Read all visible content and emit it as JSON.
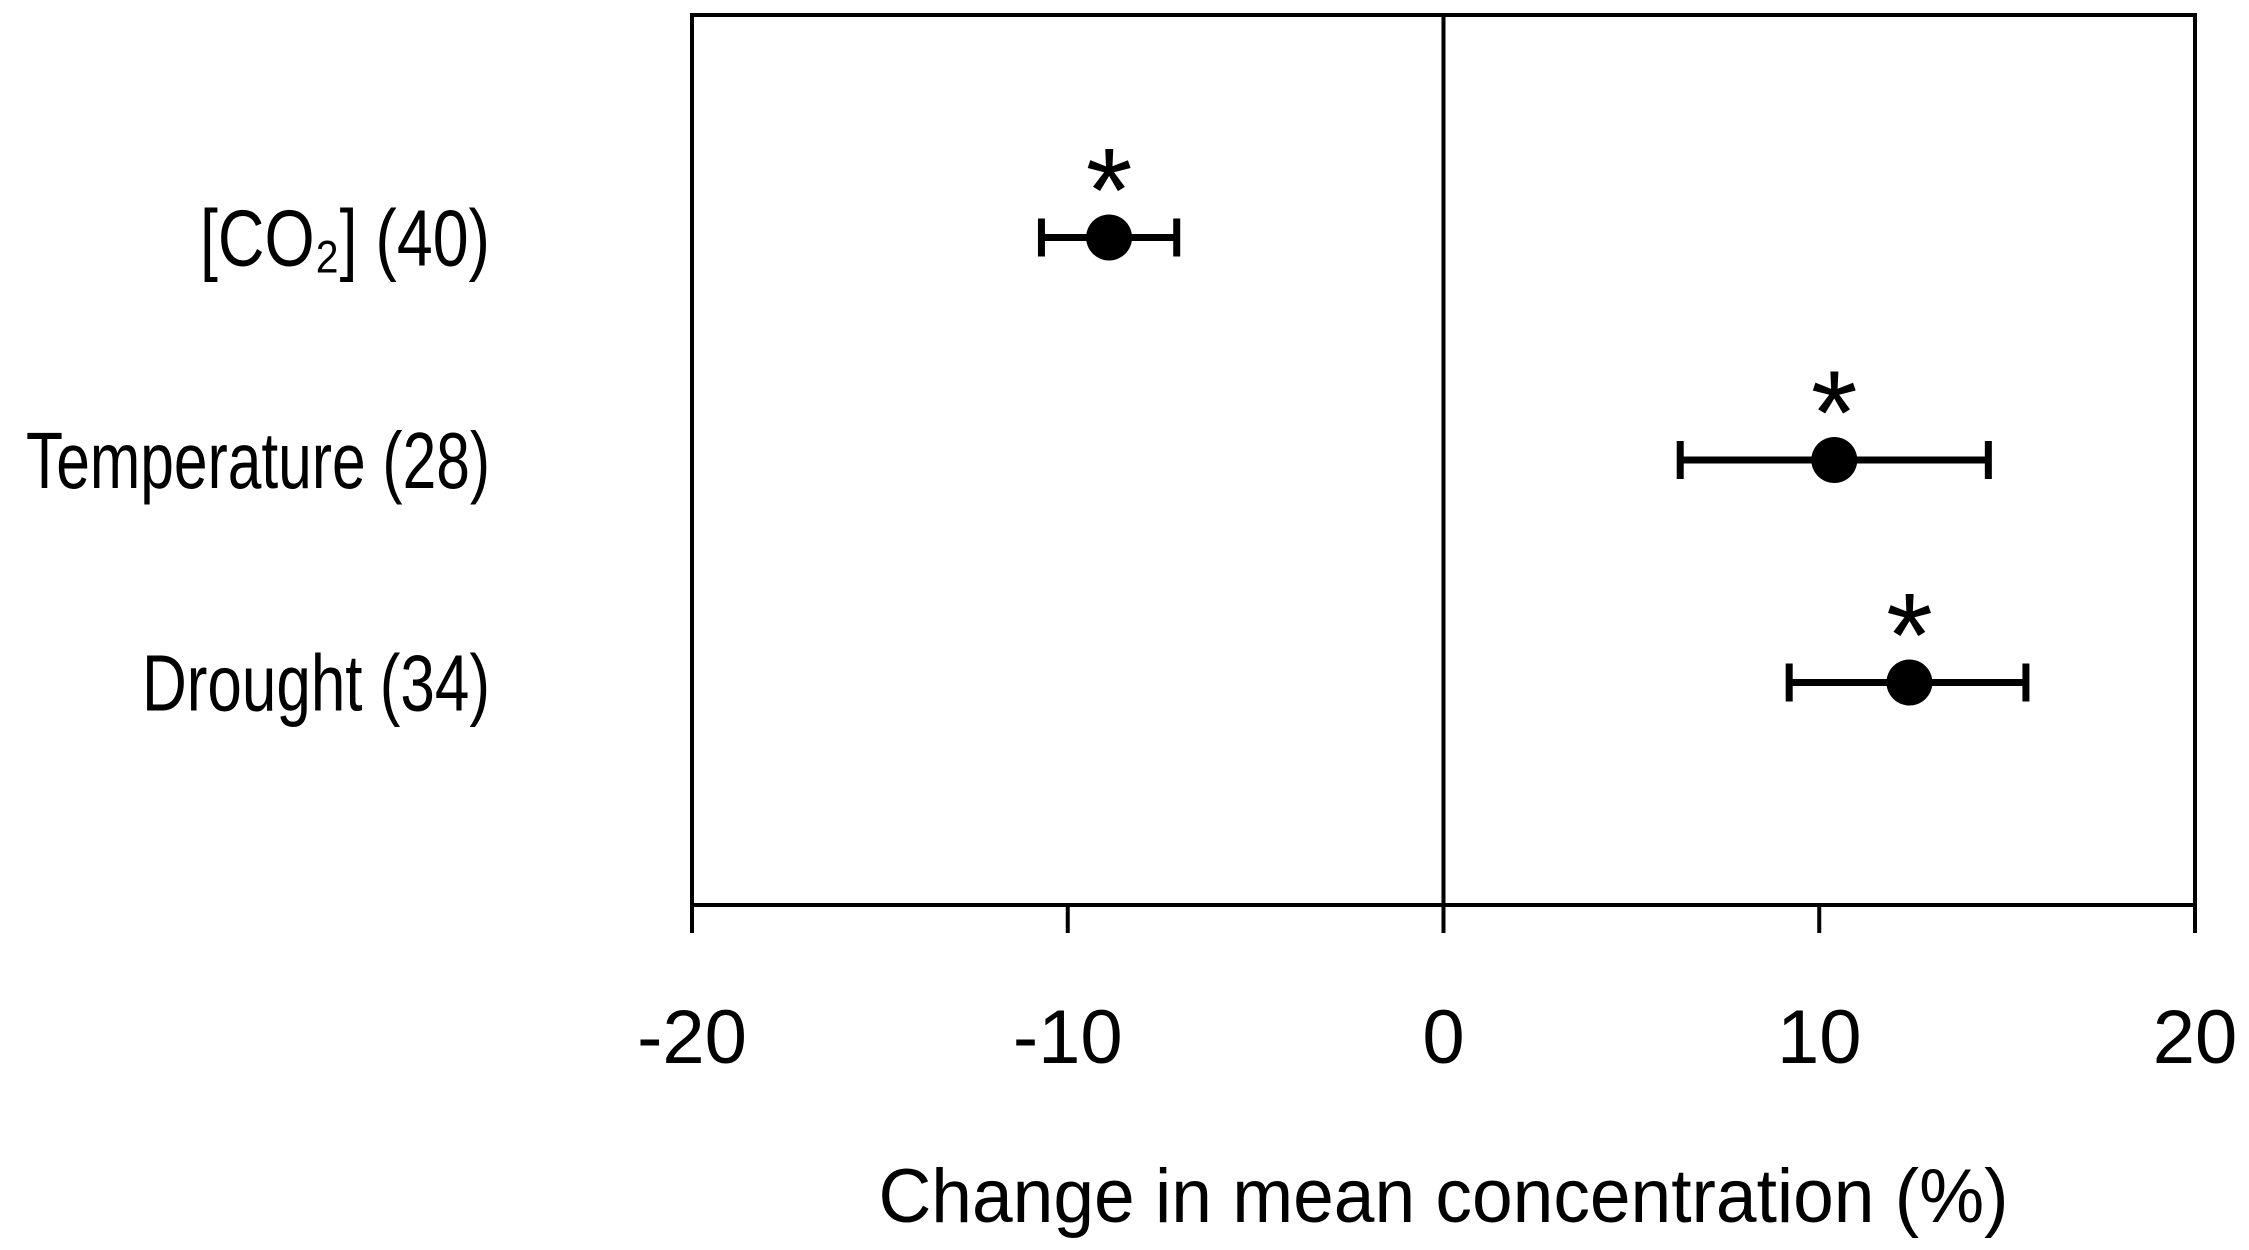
{
  "chart_data": {
    "type": "scatter",
    "subtype": "horizontal_dot_whisker_forest_plot",
    "title": "",
    "xlabel": "Change in mean concentration (%)",
    "ylabel": "",
    "xlim": [
      -20,
      20
    ],
    "x_ticks": [
      -20,
      -10,
      0,
      10,
      20
    ],
    "grid": false,
    "zero_reference_line": 0,
    "significance_symbol": "*",
    "points": [
      {
        "label": "[CO₂] (40)",
        "n": 40,
        "mean": -8.9,
        "ci_low": -10.7,
        "ci_high": -7.1,
        "significant": true
      },
      {
        "label": "Temperature (28)",
        "n": 28,
        "mean": 10.4,
        "ci_low": 6.3,
        "ci_high": 14.5,
        "significant": true
      },
      {
        "label": "Drought (34)",
        "n": 34,
        "mean": 12.4,
        "ci_low": 9.2,
        "ci_high": 15.5,
        "significant": true
      }
    ]
  },
  "colors": {
    "ink": "#000000",
    "background": "#ffffff"
  }
}
